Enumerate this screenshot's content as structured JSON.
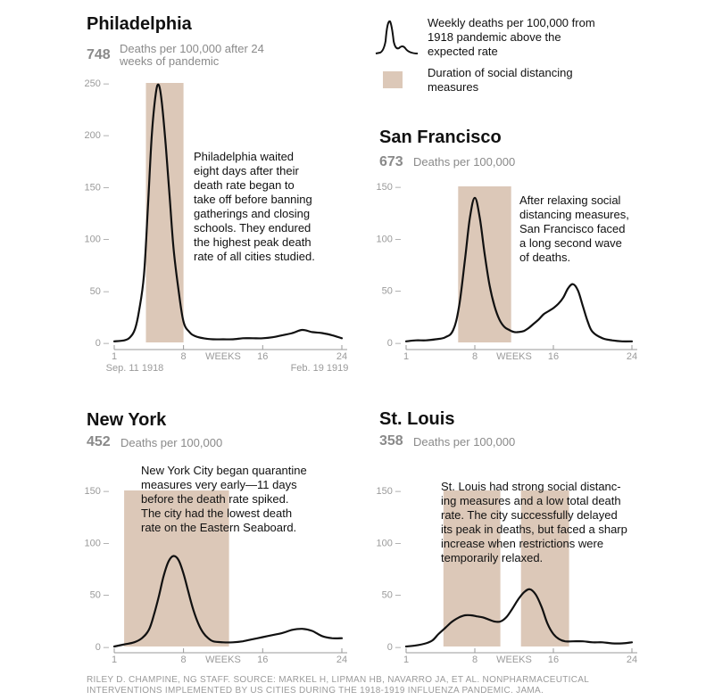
{
  "legend": {
    "line_label": "Weekly deaths per 100,000 from 1918 pandemic above the expected rate",
    "area_label": "Duration of social distancing measures"
  },
  "colors": {
    "band": "#dcc8b8",
    "line": "#111111",
    "axis": "#9a9a9a"
  },
  "source": "RILEY D. CHAMPINE, NG STAFF. SOURCE: MARKEL H, LIPMAN HB, NAVARRO JA, ET AL. NONPHARMACEUTICAL INTERVENTIONS IMPLEMENTED BY US CITIES DURING THE 1918-1919 INFLUENZA PANDEMIC. JAMA.",
  "chart_data": [
    {
      "type": "line",
      "city": "Philadelphia",
      "total": "748",
      "total_label": "Deaths per 100,000 after 24 weeks of pandemic",
      "annotation": "Philadelphia waited\neight days after their\ndeath rate began to\ntake off before banning\ngatherings and closing\nschools. They endured\nthe highest peak death\nrate of all cities studied.",
      "ylim": [
        0,
        250
      ],
      "yticks": [
        0,
        50,
        100,
        150,
        200,
        250
      ],
      "xlim": [
        1,
        24
      ],
      "xticks": [
        "1",
        "8",
        "WEEKS",
        "16",
        "24"
      ],
      "date_start": "Sep. 11 1918",
      "date_end": "Feb. 19 1919",
      "bands": [
        [
          4.2,
          8.0
        ]
      ],
      "series": {
        "name": "Weekly deaths per 100,000",
        "x": [
          1,
          2,
          2.6,
          3.1,
          3.5,
          4,
          4.4,
          4.8,
          5.2,
          5.5,
          5.8,
          6.2,
          6.6,
          7,
          7.5,
          8,
          8.6,
          9.2,
          10,
          11,
          12,
          13,
          14,
          15,
          16,
          17,
          18,
          19,
          20,
          21,
          22,
          23,
          24
        ],
        "y": [
          1,
          2,
          5,
          13,
          30,
          65,
          130,
          200,
          240,
          248,
          232,
          190,
          140,
          90,
          50,
          20,
          10,
          6,
          4,
          3,
          3,
          3,
          4,
          4,
          4,
          5,
          7,
          9,
          12,
          10,
          9,
          7,
          4
        ]
      }
    },
    {
      "type": "line",
      "city": "San Francisco",
      "total": "673",
      "total_label": "Deaths per 100,000",
      "annotation": "After relaxing social\ndistancing measures,\nSan Francisco faced\na long second wave\nof deaths.",
      "ylim": [
        0,
        150
      ],
      "yticks": [
        0,
        50,
        100,
        150
      ],
      "xlim": [
        1,
        24
      ],
      "xticks": [
        "1",
        "8",
        "WEEKS",
        "16",
        "24"
      ],
      "bands": [
        [
          6.3,
          11.7
        ]
      ],
      "series": {
        "name": "Weekly deaths per 100,000",
        "x": [
          1,
          2,
          3,
          4,
          5,
          5.8,
          6.4,
          7,
          7.5,
          8,
          8.5,
          9,
          9.5,
          10,
          10.5,
          11,
          11.5,
          12,
          12.5,
          13,
          13.5,
          14,
          14.5,
          15,
          15.5,
          16,
          16.5,
          17,
          17.5,
          18,
          18.5,
          19,
          19.5,
          20,
          21,
          22,
          23,
          24
        ],
        "y": [
          1,
          2,
          2,
          3,
          5,
          12,
          35,
          80,
          120,
          139,
          120,
          85,
          55,
          35,
          22,
          15,
          12,
          10,
          10,
          11,
          14,
          18,
          22,
          27,
          30,
          33,
          37,
          43,
          52,
          56,
          50,
          35,
          20,
          10,
          4,
          2,
          1,
          1
        ]
      }
    },
    {
      "type": "line",
      "city": "New York",
      "total": "452",
      "total_label": "Deaths per 100,000",
      "annotation": "New York City began quarantine\nmeasures very early—11 days\nbefore the death rate spiked.\nThe city had the lowest death\nrate on the Eastern Seaboard.",
      "ylim": [
        0,
        150
      ],
      "yticks": [
        0,
        50,
        100,
        150
      ],
      "xlim": [
        1,
        24
      ],
      "xticks": [
        "1",
        "8",
        "WEEKS",
        "16",
        "24"
      ],
      "bands": [
        [
          2.0,
          12.6
        ]
      ],
      "series": {
        "name": "Weekly deaths per 100,000",
        "x": [
          1,
          2,
          3,
          3.8,
          4.5,
          5,
          5.5,
          6,
          6.5,
          7,
          7.5,
          8,
          8.5,
          9,
          9.5,
          10,
          10.5,
          11,
          12,
          13,
          14,
          15,
          16,
          17,
          18,
          19,
          20,
          21,
          22,
          23,
          24
        ],
        "y": [
          0,
          2,
          4,
          8,
          16,
          30,
          48,
          68,
          82,
          87,
          83,
          70,
          52,
          35,
          22,
          13,
          8,
          5,
          4,
          4,
          5,
          7,
          9,
          11,
          13,
          16,
          17,
          15,
          10,
          8,
          8
        ]
      }
    },
    {
      "type": "line",
      "city": "St. Louis",
      "total": "358",
      "total_label": "Deaths per 100,000",
      "annotation": "St. Louis had strong social distanc-\ning measures and a low total death\nrate. The city successfully delayed\nits peak in deaths, but faced a sharp\nincrease when restrictions were\ntemporarily relaxed.",
      "ylim": [
        0,
        150
      ],
      "yticks": [
        0,
        50,
        100,
        150
      ],
      "xlim": [
        1,
        24
      ],
      "xticks": [
        "1",
        "8",
        "WEEKS",
        "16",
        "24"
      ],
      "bands": [
        [
          4.8,
          10.6
        ],
        [
          12.7,
          17.6
        ]
      ],
      "series": {
        "name": "Weekly deaths per 100,000",
        "x": [
          1,
          2,
          3,
          3.7,
          4.3,
          5,
          5.7,
          6.4,
          7,
          7.6,
          8.2,
          8.8,
          9.4,
          10,
          10.6,
          11.2,
          11.8,
          12.4,
          13,
          13.6,
          14.2,
          14.8,
          15.4,
          16,
          16.6,
          17.2,
          18,
          19,
          20,
          21,
          22,
          23,
          24
        ],
        "y": [
          0,
          1,
          3,
          6,
          12,
          18,
          24,
          28,
          30,
          30,
          29,
          28,
          26,
          24,
          24,
          28,
          36,
          45,
          52,
          55,
          50,
          38,
          22,
          12,
          7,
          5,
          5,
          5,
          4,
          4,
          3,
          3,
          4
        ]
      }
    }
  ]
}
